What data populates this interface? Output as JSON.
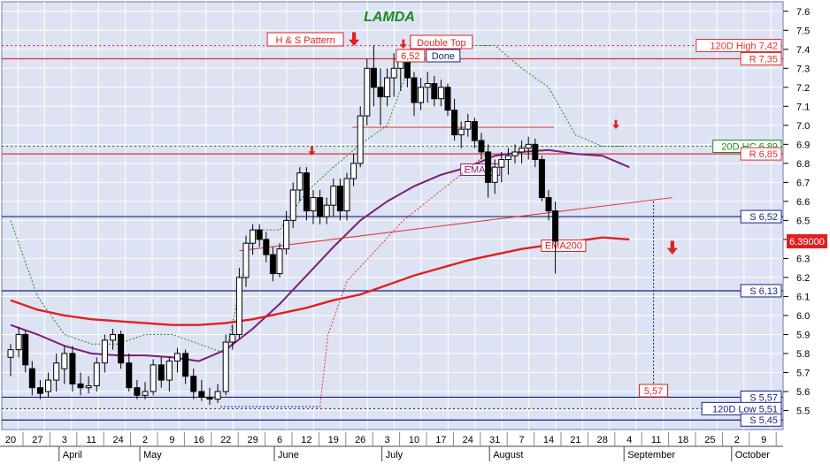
{
  "chart_data": {
    "type": "candlestick",
    "title": "LAMDA",
    "ylim": [
      5.4,
      7.65
    ],
    "y_ticks": [
      5.5,
      5.6,
      5.7,
      5.8,
      5.9,
      6.0,
      6.1,
      6.2,
      6.3,
      6.4,
      6.5,
      6.6,
      6.7,
      6.8,
      6.9,
      7.0,
      7.1,
      7.2,
      7.3,
      7.4,
      7.5,
      7.6
    ],
    "x_day_labels": [
      "20",
      "27",
      "3",
      "11",
      "24",
      "2",
      "9",
      "16",
      "22",
      "29",
      "6",
      "12",
      "19",
      "26",
      "3",
      "10",
      "17",
      "24",
      "31",
      "7",
      "14",
      "21",
      "28",
      "4",
      "11",
      "18",
      "25",
      "2",
      "9"
    ],
    "x_month_labels": [
      {
        "label": "April",
        "day_index": 2
      },
      {
        "label": "May",
        "day_index": 5
      },
      {
        "label": "June",
        "day_index": 10
      },
      {
        "label": "July",
        "day_index": 14
      },
      {
        "label": "August",
        "day_index": 18
      },
      {
        "label": "September",
        "day_index": 23
      },
      {
        "label": "October",
        "day_index": 27
      }
    ],
    "grid": true,
    "last_price": "6.39000",
    "annotations": {
      "pattern": "H & S Pattern",
      "double_top": "Double Top",
      "done": "Done",
      "neck_value": "6,52",
      "target_value": "5,57"
    },
    "levels": [
      {
        "label": "120D High 7,42",
        "value": 7.42,
        "style": "dotted",
        "color": "#e03030",
        "box": "#e03030"
      },
      {
        "label": "R 7,35",
        "value": 7.35,
        "style": "solid",
        "color": "#e03030",
        "box": "#e03030"
      },
      {
        "label": "20D HC 6,89",
        "value": 6.89,
        "style": "dotted",
        "color": "#1a8a1a",
        "box": "#1a8a1a"
      },
      {
        "label": "R 6,85",
        "value": 6.85,
        "style": "solid",
        "color": "#e03030",
        "box": "#e03030"
      },
      {
        "label": "S 6,52",
        "value": 6.52,
        "style": "solid",
        "color": "#1a237e",
        "box": "#1a237e"
      },
      {
        "label": "S 6,13",
        "value": 6.13,
        "style": "solid",
        "color": "#1a237e",
        "box": "#1a237e"
      },
      {
        "label": "S 5,57",
        "value": 5.57,
        "style": "solid",
        "color": "#1a237e",
        "box": "#1a237e"
      },
      {
        "label": "120D Low 5,51",
        "value": 5.51,
        "style": "dotted",
        "color": "#1a237e",
        "box": "#1a237e"
      },
      {
        "label": "S 5,45",
        "value": 5.45,
        "style": "solid",
        "color": "#1a237e",
        "box": "#1a237e"
      }
    ],
    "series": [
      {
        "name": "EMA50",
        "color": "#7b1e7a",
        "x": [
          0,
          1,
          2,
          3,
          4,
          5,
          6,
          7,
          8,
          9,
          10,
          11,
          12,
          13,
          14,
          15,
          16,
          17,
          18,
          19,
          20,
          21,
          22,
          23
        ],
        "y": [
          5.95,
          5.9,
          5.84,
          5.8,
          5.79,
          5.79,
          5.78,
          5.76,
          5.82,
          5.93,
          6.06,
          6.21,
          6.36,
          6.5,
          6.6,
          6.68,
          6.74,
          6.78,
          6.84,
          6.86,
          6.87,
          6.85,
          6.84,
          6.78
        ]
      },
      {
        "name": "EMA200",
        "color": "#e02020",
        "x": [
          0,
          1,
          2,
          3,
          4,
          5,
          6,
          7,
          8,
          9,
          10,
          11,
          12,
          13,
          14,
          15,
          16,
          17,
          18,
          19,
          20,
          21,
          22,
          23
        ],
        "y": [
          6.08,
          6.03,
          6.0,
          5.98,
          5.97,
          5.96,
          5.95,
          5.95,
          5.96,
          5.98,
          6.01,
          6.04,
          6.08,
          6.11,
          6.16,
          6.21,
          6.25,
          6.29,
          6.32,
          6.35,
          6.37,
          6.39,
          6.41,
          6.4
        ]
      }
    ],
    "candles": [
      {
        "x": 0.0,
        "o": 5.78,
        "h": 5.85,
        "l": 5.68,
        "c": 5.82
      },
      {
        "x": 0.3,
        "o": 5.82,
        "h": 5.94,
        "l": 5.78,
        "c": 5.9
      },
      {
        "x": 0.55,
        "o": 5.9,
        "h": 5.92,
        "l": 5.7,
        "c": 5.74
      },
      {
        "x": 0.8,
        "o": 5.72,
        "h": 5.76,
        "l": 5.58,
        "c": 5.62
      },
      {
        "x": 1.1,
        "o": 5.62,
        "h": 5.66,
        "l": 5.56,
        "c": 5.59
      },
      {
        "x": 1.4,
        "o": 5.6,
        "h": 5.7,
        "l": 5.57,
        "c": 5.66
      },
      {
        "x": 1.7,
        "o": 5.66,
        "h": 5.8,
        "l": 5.6,
        "c": 5.75
      },
      {
        "x": 2.0,
        "o": 5.72,
        "h": 5.84,
        "l": 5.64,
        "c": 5.8
      },
      {
        "x": 2.3,
        "o": 5.8,
        "h": 5.84,
        "l": 5.6,
        "c": 5.64
      },
      {
        "x": 2.6,
        "o": 5.64,
        "h": 5.7,
        "l": 5.58,
        "c": 5.62
      },
      {
        "x": 2.9,
        "o": 5.62,
        "h": 5.68,
        "l": 5.59,
        "c": 5.63
      },
      {
        "x": 3.2,
        "o": 5.63,
        "h": 5.78,
        "l": 5.6,
        "c": 5.75
      },
      {
        "x": 3.5,
        "o": 5.75,
        "h": 5.9,
        "l": 5.7,
        "c": 5.87
      },
      {
        "x": 3.8,
        "o": 5.87,
        "h": 5.93,
        "l": 5.82,
        "c": 5.9
      },
      {
        "x": 4.1,
        "o": 5.9,
        "h": 5.92,
        "l": 5.72,
        "c": 5.75
      },
      {
        "x": 4.4,
        "o": 5.75,
        "h": 5.8,
        "l": 5.6,
        "c": 5.62
      },
      {
        "x": 4.7,
        "o": 5.62,
        "h": 5.66,
        "l": 5.56,
        "c": 5.58
      },
      {
        "x": 5.0,
        "o": 5.58,
        "h": 5.65,
        "l": 5.56,
        "c": 5.6
      },
      {
        "x": 5.3,
        "o": 5.6,
        "h": 5.77,
        "l": 5.58,
        "c": 5.74
      },
      {
        "x": 5.6,
        "o": 5.74,
        "h": 5.78,
        "l": 5.62,
        "c": 5.66
      },
      {
        "x": 5.9,
        "o": 5.66,
        "h": 5.78,
        "l": 5.6,
        "c": 5.76
      },
      {
        "x": 6.2,
        "o": 5.76,
        "h": 5.83,
        "l": 5.7,
        "c": 5.8
      },
      {
        "x": 6.5,
        "o": 5.8,
        "h": 5.82,
        "l": 5.64,
        "c": 5.68
      },
      {
        "x": 6.8,
        "o": 5.68,
        "h": 5.72,
        "l": 5.56,
        "c": 5.6
      },
      {
        "x": 7.1,
        "o": 5.6,
        "h": 5.66,
        "l": 5.55,
        "c": 5.57
      },
      {
        "x": 7.4,
        "o": 5.57,
        "h": 5.62,
        "l": 5.53,
        "c": 5.56
      },
      {
        "x": 7.7,
        "o": 5.56,
        "h": 5.64,
        "l": 5.54,
        "c": 5.6
      },
      {
        "x": 8.0,
        "o": 5.6,
        "h": 5.9,
        "l": 5.58,
        "c": 5.86
      },
      {
        "x": 8.25,
        "o": 5.86,
        "h": 5.95,
        "l": 5.82,
        "c": 5.9
      },
      {
        "x": 8.5,
        "o": 5.9,
        "h": 6.25,
        "l": 5.88,
        "c": 6.2
      },
      {
        "x": 8.75,
        "o": 6.2,
        "h": 6.42,
        "l": 6.15,
        "c": 6.38
      },
      {
        "x": 9.0,
        "o": 6.38,
        "h": 6.48,
        "l": 6.32,
        "c": 6.45
      },
      {
        "x": 9.25,
        "o": 6.45,
        "h": 6.48,
        "l": 6.36,
        "c": 6.4
      },
      {
        "x": 9.5,
        "o": 6.4,
        "h": 6.44,
        "l": 6.28,
        "c": 6.32
      },
      {
        "x": 9.75,
        "o": 6.32,
        "h": 6.36,
        "l": 6.18,
        "c": 6.22
      },
      {
        "x": 10.0,
        "o": 6.22,
        "h": 6.38,
        "l": 6.2,
        "c": 6.35
      },
      {
        "x": 10.25,
        "o": 6.35,
        "h": 6.55,
        "l": 6.32,
        "c": 6.5
      },
      {
        "x": 10.5,
        "o": 6.5,
        "h": 6.7,
        "l": 6.46,
        "c": 6.66
      },
      {
        "x": 10.75,
        "o": 6.66,
        "h": 6.78,
        "l": 6.6,
        "c": 6.75
      },
      {
        "x": 11.0,
        "o": 6.75,
        "h": 6.78,
        "l": 6.5,
        "c": 6.55
      },
      {
        "x": 11.25,
        "o": 6.55,
        "h": 6.66,
        "l": 6.48,
        "c": 6.62
      },
      {
        "x": 11.5,
        "o": 6.62,
        "h": 6.66,
        "l": 6.48,
        "c": 6.52
      },
      {
        "x": 11.75,
        "o": 6.52,
        "h": 6.62,
        "l": 6.48,
        "c": 6.58
      },
      {
        "x": 12.0,
        "o": 6.58,
        "h": 6.72,
        "l": 6.52,
        "c": 6.68
      },
      {
        "x": 12.25,
        "o": 6.68,
        "h": 6.72,
        "l": 6.5,
        "c": 6.55
      },
      {
        "x": 12.5,
        "o": 6.55,
        "h": 6.75,
        "l": 6.5,
        "c": 6.72
      },
      {
        "x": 12.75,
        "o": 6.72,
        "h": 6.85,
        "l": 6.68,
        "c": 6.8
      },
      {
        "x": 13.0,
        "o": 6.8,
        "h": 7.1,
        "l": 6.78,
        "c": 7.05
      },
      {
        "x": 13.25,
        "o": 7.05,
        "h": 7.35,
        "l": 7.0,
        "c": 7.3
      },
      {
        "x": 13.5,
        "o": 7.3,
        "h": 7.42,
        "l": 7.1,
        "c": 7.2
      },
      {
        "x": 13.75,
        "o": 7.2,
        "h": 7.3,
        "l": 7.0,
        "c": 7.15
      },
      {
        "x": 14.0,
        "o": 7.15,
        "h": 7.3,
        "l": 7.1,
        "c": 7.25
      },
      {
        "x": 14.25,
        "o": 7.25,
        "h": 7.38,
        "l": 7.15,
        "c": 7.3
      },
      {
        "x": 14.5,
        "o": 7.3,
        "h": 7.4,
        "l": 7.18,
        "c": 7.35
      },
      {
        "x": 14.75,
        "o": 7.35,
        "h": 7.38,
        "l": 7.2,
        "c": 7.25
      },
      {
        "x": 15.0,
        "o": 7.25,
        "h": 7.28,
        "l": 7.05,
        "c": 7.12
      },
      {
        "x": 15.25,
        "o": 7.12,
        "h": 7.25,
        "l": 7.08,
        "c": 7.2
      },
      {
        "x": 15.5,
        "o": 7.2,
        "h": 7.28,
        "l": 7.12,
        "c": 7.22
      },
      {
        "x": 15.75,
        "o": 7.22,
        "h": 7.26,
        "l": 7.1,
        "c": 7.14
      },
      {
        "x": 16.0,
        "o": 7.14,
        "h": 7.24,
        "l": 7.1,
        "c": 7.2
      },
      {
        "x": 16.25,
        "o": 7.2,
        "h": 7.22,
        "l": 7.05,
        "c": 7.08
      },
      {
        "x": 16.5,
        "o": 7.08,
        "h": 7.14,
        "l": 6.92,
        "c": 6.95
      },
      {
        "x": 16.75,
        "o": 6.95,
        "h": 7.02,
        "l": 6.88,
        "c": 6.98
      },
      {
        "x": 17.0,
        "o": 6.98,
        "h": 7.06,
        "l": 6.94,
        "c": 7.02
      },
      {
        "x": 17.25,
        "o": 7.02,
        "h": 7.04,
        "l": 6.88,
        "c": 6.92
      },
      {
        "x": 17.5,
        "o": 6.92,
        "h": 6.96,
        "l": 6.82,
        "c": 6.86
      },
      {
        "x": 17.75,
        "o": 6.86,
        "h": 6.9,
        "l": 6.62,
        "c": 6.7
      },
      {
        "x": 18.0,
        "o": 6.7,
        "h": 6.82,
        "l": 6.64,
        "c": 6.78
      },
      {
        "x": 18.25,
        "o": 6.78,
        "h": 6.86,
        "l": 6.7,
        "c": 6.82
      },
      {
        "x": 18.5,
        "o": 6.82,
        "h": 6.88,
        "l": 6.74,
        "c": 6.84
      },
      {
        "x": 18.75,
        "o": 6.84,
        "h": 6.9,
        "l": 6.8,
        "c": 6.86
      },
      {
        "x": 19.0,
        "o": 6.86,
        "h": 6.92,
        "l": 6.8,
        "c": 6.88
      },
      {
        "x": 19.25,
        "o": 6.88,
        "h": 6.94,
        "l": 6.82,
        "c": 6.9
      },
      {
        "x": 19.5,
        "o": 6.9,
        "h": 6.93,
        "l": 6.78,
        "c": 6.82
      },
      {
        "x": 19.75,
        "o": 6.82,
        "h": 6.84,
        "l": 6.6,
        "c": 6.62
      },
      {
        "x": 20.0,
        "o": 6.62,
        "h": 6.66,
        "l": 6.5,
        "c": 6.55
      },
      {
        "x": 20.25,
        "o": 6.55,
        "h": 6.6,
        "l": 6.22,
        "c": 6.39
      }
    ],
    "hc20": {
      "x": [
        0,
        1,
        2,
        3,
        4,
        5,
        6,
        7,
        8,
        9,
        10,
        11,
        12,
        13,
        14,
        15,
        16,
        17,
        18,
        19,
        20,
        21,
        22,
        23
      ],
      "y": [
        6.5,
        6.1,
        5.9,
        5.85,
        5.85,
        5.9,
        5.9,
        5.85,
        5.8,
        6.45,
        6.45,
        6.65,
        6.78,
        6.9,
        7.0,
        7.38,
        7.38,
        7.42,
        7.42,
        7.3,
        7.2,
        6.95,
        6.89,
        6.89
      ]
    }
  }
}
